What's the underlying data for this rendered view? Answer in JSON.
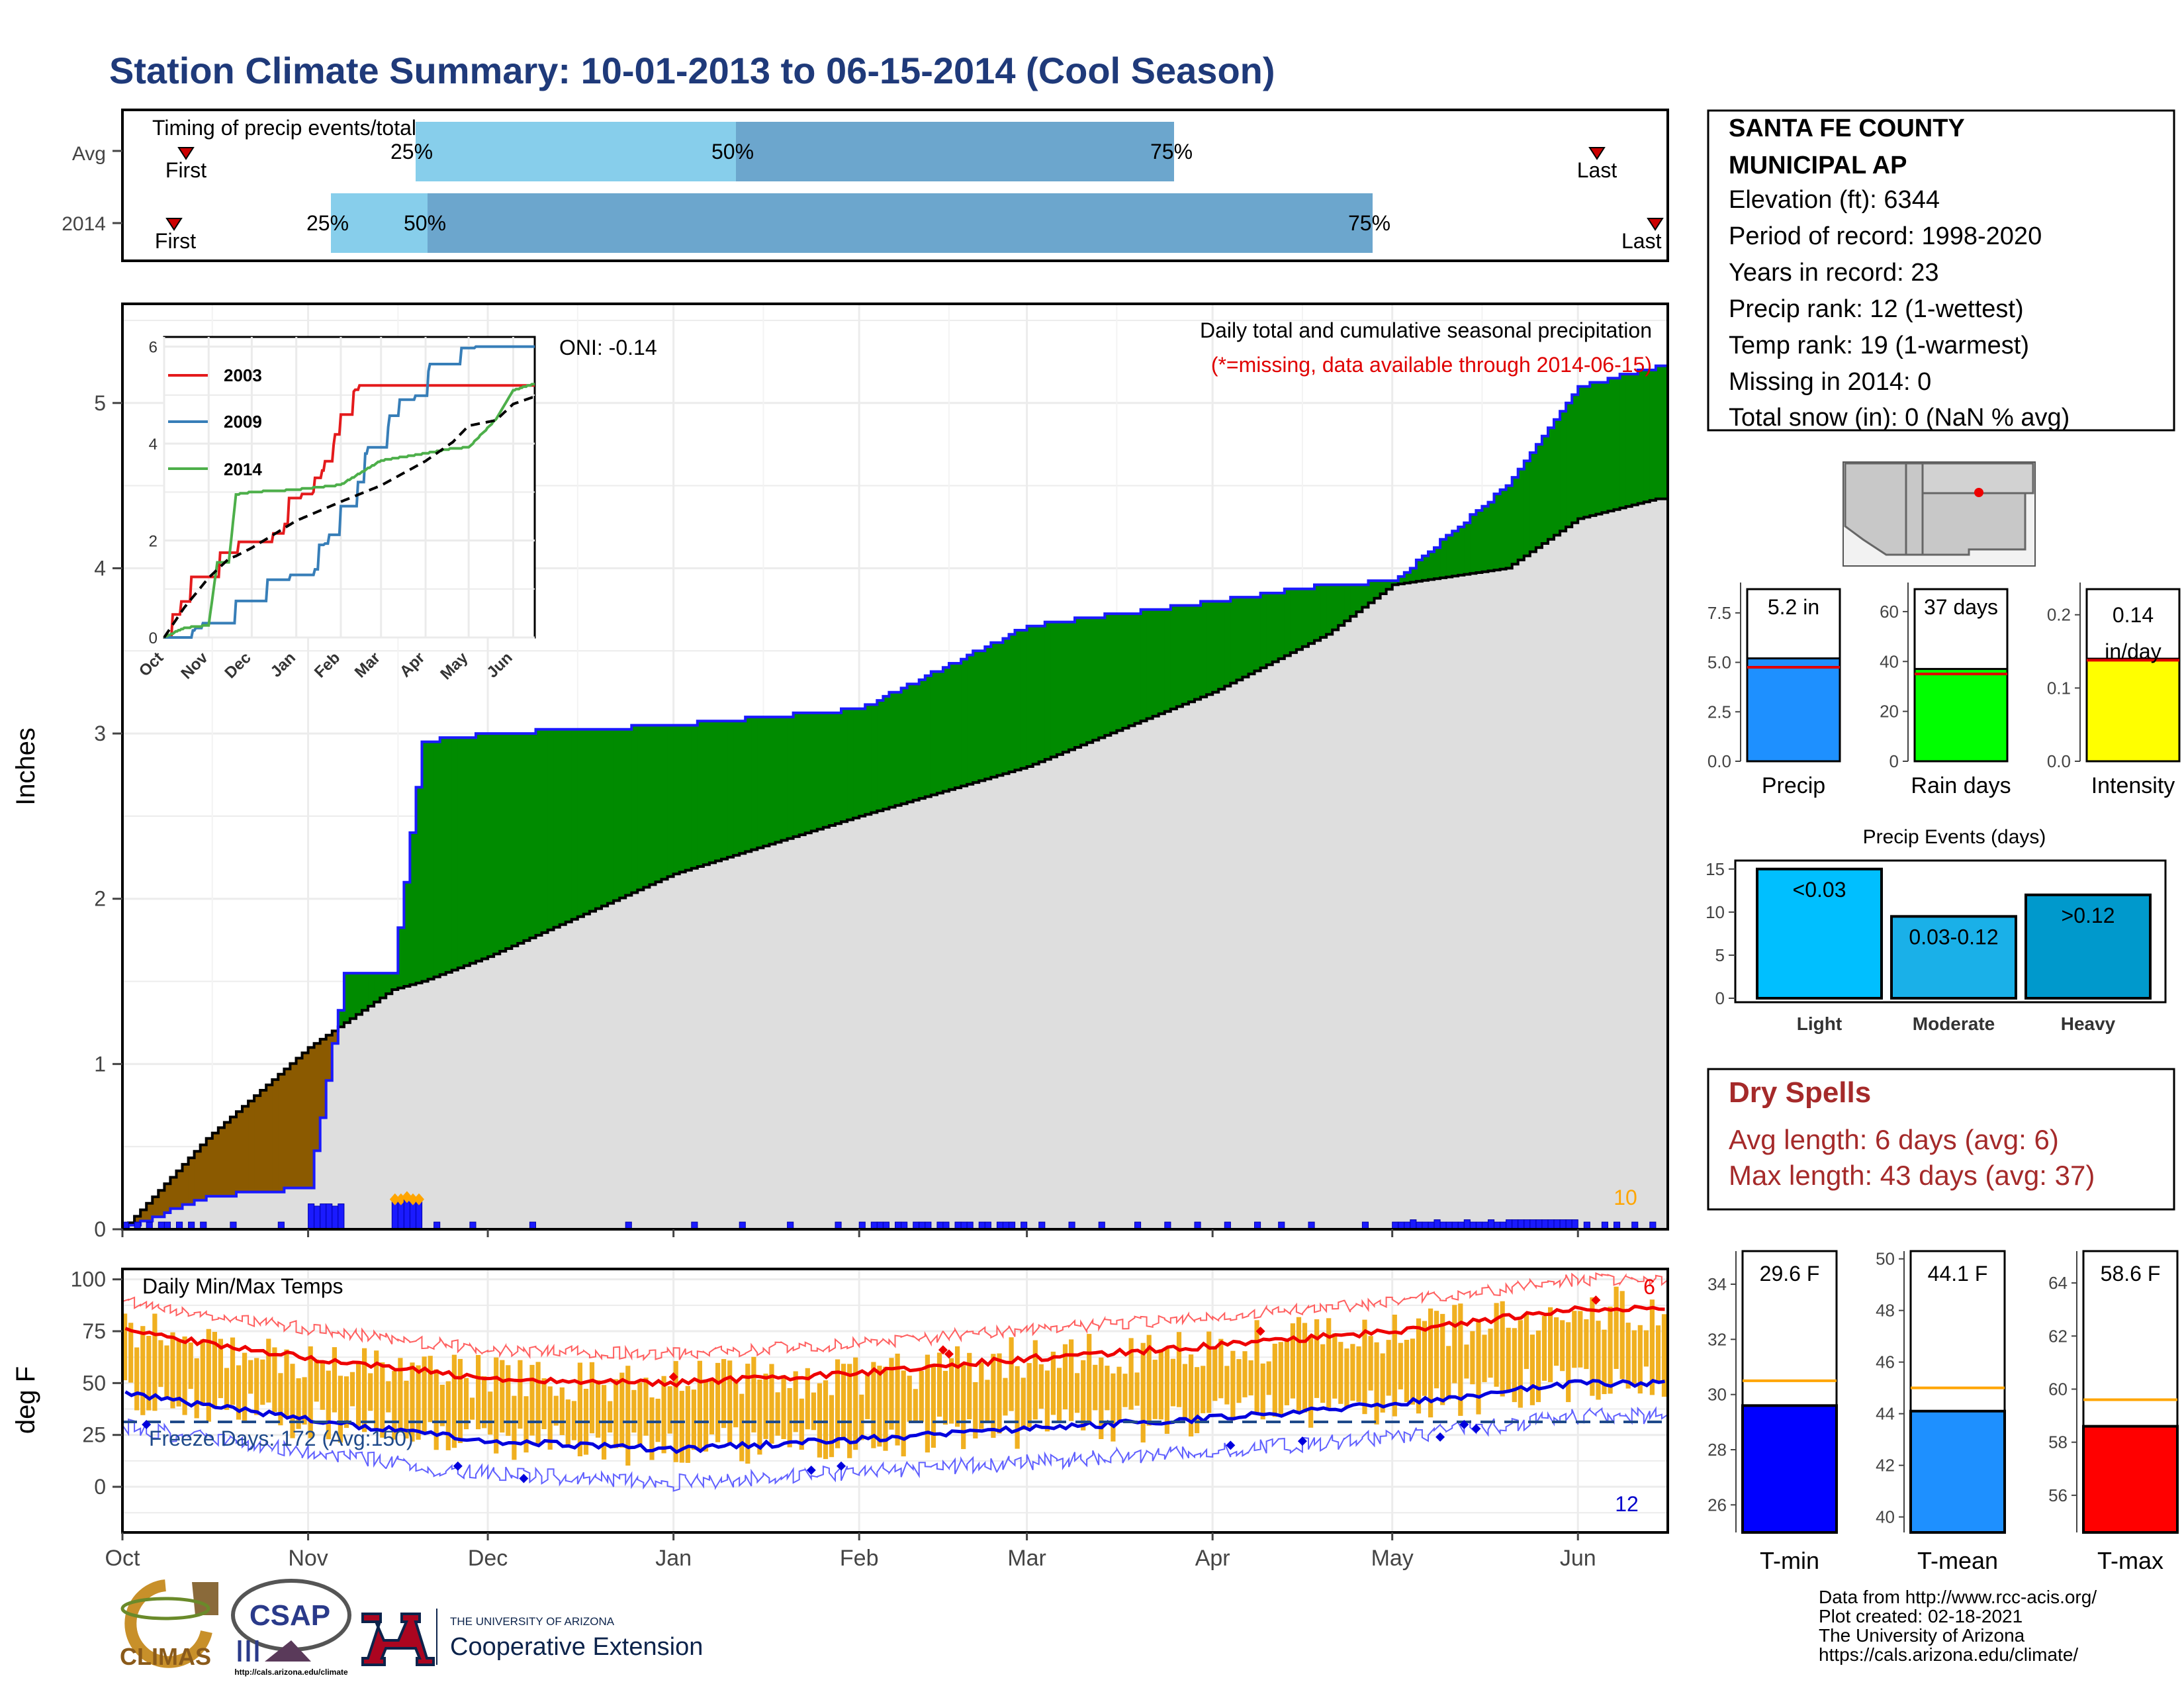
{
  "title": "Station Climate Summary: 10-01-2013 to 06-15-2014 (Cool Season)",
  "colors": {
    "title": "#1f3a7a",
    "light_blue": "#87ceeb",
    "mid_blue": "#6ca6cd",
    "green": "#008b00",
    "brown": "#8b5a00",
    "gray_fill": "#dedede",
    "precip_bar": "#1e90ff",
    "rain_days": "#00ff00",
    "intensity": "#ffff00",
    "light": "#00bfff",
    "moderate": "#1ab0e8",
    "heavy": "#0099cc",
    "tmin": "#0000ff",
    "tmean": "#1e90ff",
    "tmax": "#ff0000",
    "dry": "#a52a2a",
    "orange": "#ffa500",
    "temp_bar": "#f0b020"
  },
  "timing": {
    "label": "Timing of precip events/totals",
    "rows": [
      {
        "name": "Avg",
        "first": "First",
        "last": "Last",
        "p25": "25%",
        "p50": "50%",
        "p75": "75%"
      },
      {
        "name": "2014",
        "first": "First",
        "last": "Last",
        "p25": "25%",
        "p50": "50%",
        "p75": "75%"
      }
    ]
  },
  "info": {
    "station": "SANTA FE COUNTY",
    "station2": "MUNICIPAL AP",
    "lines": [
      "Elevation (ft): 6344",
      "Period of record: 1998-2020",
      "Years in record: 23",
      "Precip rank: 12 (1-wettest)",
      "Temp rank: 19 (1-warmest)",
      "Missing in 2014: 0",
      "Total snow (in): 0 (NaN % avg)"
    ]
  },
  "precip_panel": {
    "ylabel": "Inches",
    "y_ticks": [
      "0",
      "1",
      "2",
      "3",
      "4",
      "5"
    ],
    "oni": "ONI: -0.14",
    "caption": "Daily total and cumulative seasonal precipitation",
    "missing_note": "(*=missing, data available through 2014-06-15)",
    "extra_count": "10"
  },
  "inset": {
    "legend": [
      "2003",
      "2009",
      "2014"
    ],
    "y_ticks": [
      "0",
      "2",
      "4",
      "6"
    ],
    "x_ticks": [
      "Oct",
      "Nov",
      "Dec",
      "Jan",
      "Feb",
      "Mar",
      "Apr",
      "May",
      "Jun"
    ]
  },
  "months": [
    "Oct",
    "Nov",
    "Dec",
    "Jan",
    "Feb",
    "Mar",
    "Apr",
    "May",
    "Jun"
  ],
  "temp_panel": {
    "ylabel": "deg F",
    "title": "Daily Min/Max Temps",
    "y_ticks": [
      "0",
      "25",
      "50",
      "75",
      "100"
    ],
    "freeze": "Freeze Days: 172 (Avg:150)",
    "max_count": "6",
    "min_count": "12"
  },
  "mini_bars": [
    {
      "label": "Precip",
      "value": "5.2 in",
      "ticks": [
        "0.0",
        "2.5",
        "5.0",
        "7.5"
      ]
    },
    {
      "label": "Rain days",
      "value": "37 days",
      "ticks": [
        "0",
        "20",
        "40",
        "60"
      ]
    },
    {
      "label": "Intensity",
      "value": "0.14",
      "unit": "in/day",
      "ticks": [
        "0.0",
        "0.1",
        "0.2"
      ]
    }
  ],
  "events": {
    "title": "Precip Events (days)",
    "ticks": [
      "0",
      "5",
      "10",
      "15"
    ],
    "bars": [
      {
        "label": "Light",
        "text": "<0.03",
        "value": 15
      },
      {
        "label": "Moderate",
        "text": "0.03-0.12",
        "value": 9.5
      },
      {
        "label": "Heavy",
        "text": ">0.12",
        "value": 12
      }
    ]
  },
  "dry": {
    "title": "Dry Spells",
    "avg": "Avg length: 6 days (avg: 6)",
    "max": "Max length: 43 days (avg: 37)"
  },
  "temp_bars": [
    {
      "label": "T-min",
      "value": "29.6 F",
      "ticks": [
        "26",
        "28",
        "30",
        "32",
        "34"
      ]
    },
    {
      "label": "T-mean",
      "value": "44.1 F",
      "ticks": [
        "40",
        "42",
        "44",
        "46",
        "48",
        "50"
      ]
    },
    {
      "label": "T-max",
      "value": "58.6 F",
      "ticks": [
        "56",
        "58",
        "60",
        "62",
        "64"
      ]
    }
  ],
  "footer": [
    "Data from http://www.rcc-acis.org/",
    "Plot created: 02-18-2021",
    "The University of Arizona",
    "https://cals.arizona.edu/climate/"
  ],
  "logos": {
    "climas": "CLIMAS",
    "csap": "CSAP",
    "csap_url": "http://cals.arizona.edu/climate",
    "ua_small": "THE UNIVERSITY OF ARIZONA",
    "ua_big": "Cooperative Extension"
  },
  "chart_data": {
    "type": "area",
    "title": "Station Climate Summary: 10-01-2013 to 06-15-2014 (Cool Season)",
    "ylabel": "Inches",
    "ylim": [
      0,
      5.6
    ],
    "x": [
      "2013-10-01",
      "2013-10-15",
      "2013-11-01",
      "2013-11-07",
      "2013-11-15",
      "2013-11-20",
      "2013-12-01",
      "2014-01-01",
      "2014-02-01",
      "2014-03-01",
      "2014-04-01",
      "2014-04-20",
      "2014-05-01",
      "2014-05-20",
      "2014-06-01",
      "2014-06-14"
    ],
    "series": [
      {
        "name": "2014",
        "values": [
          0,
          0.2,
          0.25,
          1.55,
          1.55,
          2.95,
          3.0,
          3.05,
          3.15,
          3.65,
          3.8,
          3.9,
          3.92,
          4.5,
          5.1,
          5.22
        ]
      },
      {
        "name": "Avg",
        "values": [
          0,
          0.55,
          1.1,
          1.25,
          1.45,
          1.5,
          1.65,
          2.15,
          2.5,
          2.8,
          3.25,
          3.6,
          3.9,
          4.0,
          4.3,
          4.42
        ]
      }
    ],
    "temperature": {
      "title": "Daily Min/Max Temps",
      "ylabel": "deg F",
      "ylim": [
        -22,
        105
      ],
      "x": [
        "Oct",
        "Nov",
        "Dec",
        "Jan",
        "Feb",
        "Mar",
        "Apr",
        "May",
        "Jun"
      ],
      "avg_max": [
        75,
        62,
        52,
        50,
        55,
        62,
        68,
        75,
        86
      ],
      "avg_min": [
        45,
        32,
        22,
        18,
        23,
        28,
        33,
        40,
        50
      ],
      "freeze_days": 172,
      "freeze_avg": 150
    },
    "summary_bars": {
      "precip_in": 5.2,
      "rain_days": 37,
      "intensity_in_per_day": 0.14,
      "tmin_F": 29.6,
      "tmean_F": 44.1,
      "tmax_F": 58.6
    }
  }
}
